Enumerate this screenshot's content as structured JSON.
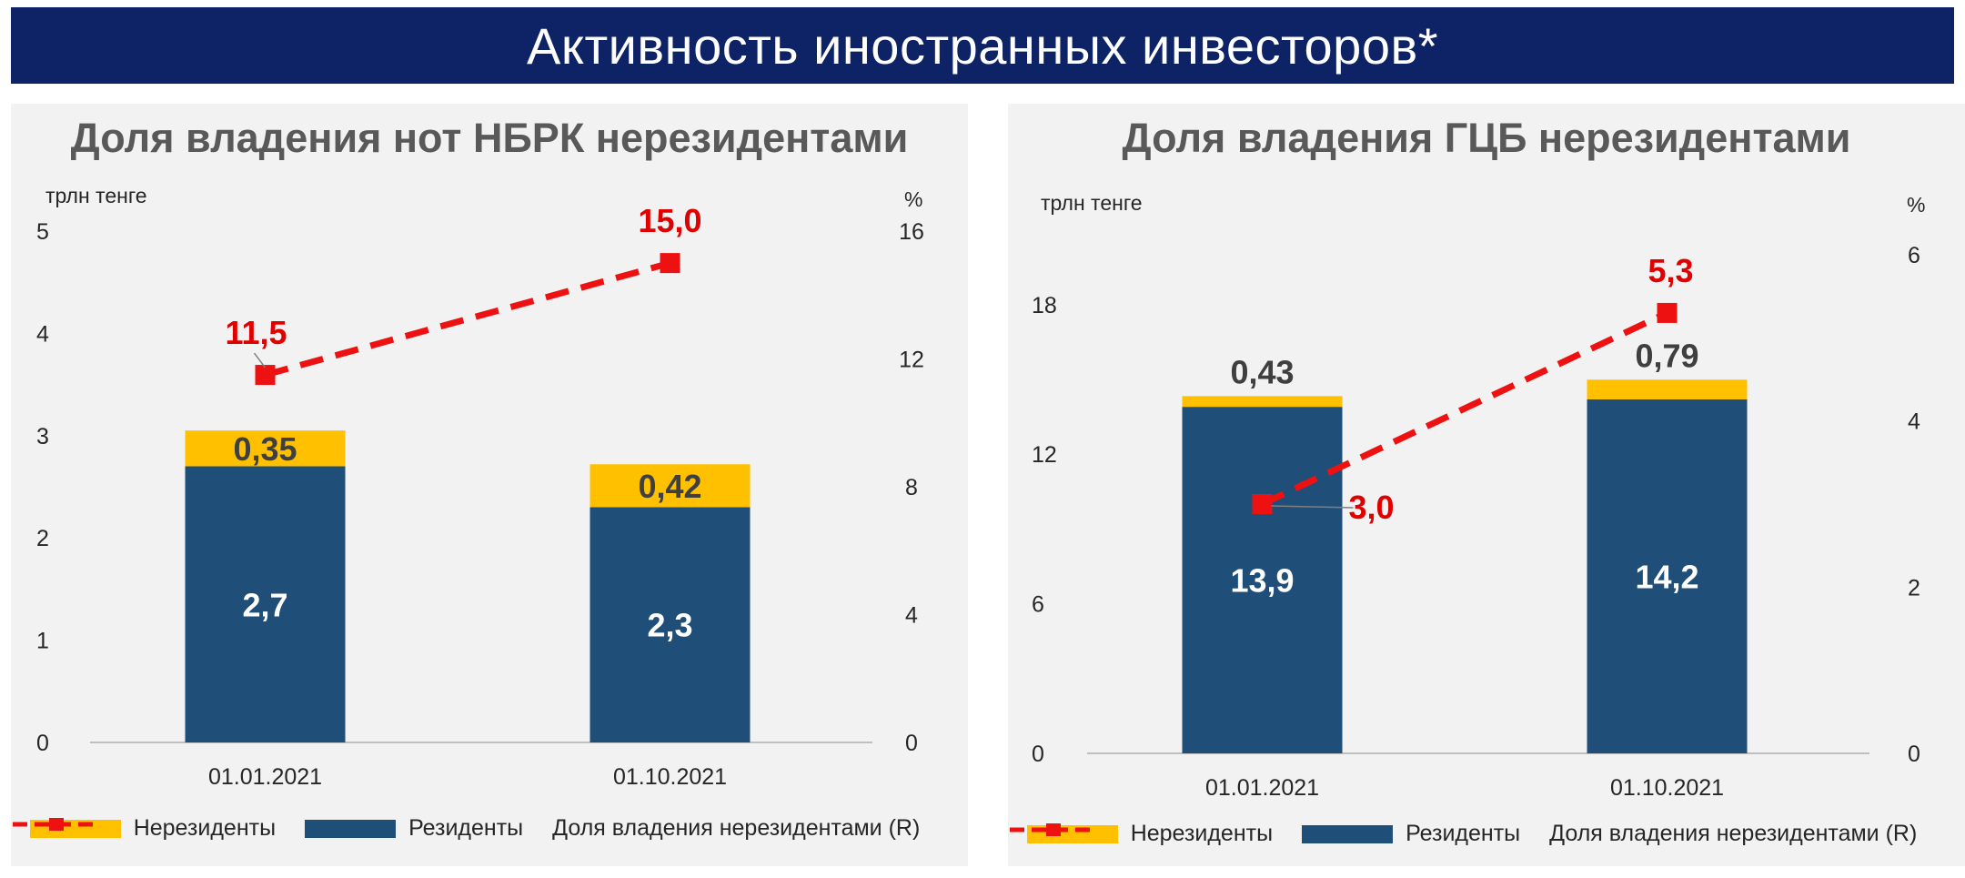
{
  "banner": {
    "title": "Активность иностранных инвесторов*"
  },
  "legend": {
    "nonresidents": "Нерезиденты",
    "residents": "Резиденты",
    "share": "Доля владения нерезидентами (R)"
  },
  "colors": {
    "residents": "#1f4e79",
    "nonresidents": "#ffc000",
    "share_line": "#ee1111",
    "banner": "#0d2366"
  },
  "charts": [
    {
      "title": "Доля владения нот НБРК нерезидентами",
      "left_unit": "трлн тенге",
      "right_unit": "%",
      "left_ticks": [
        "0",
        "1",
        "2",
        "3",
        "4",
        "5"
      ],
      "right_ticks": [
        "0",
        "4",
        "8",
        "12",
        "16"
      ],
      "categories": [
        "01.01.2021",
        "01.10.2021"
      ],
      "residents_labels": [
        "2,7",
        "2,3"
      ],
      "nonresidents_labels": [
        "0,35",
        "0,42"
      ],
      "share_labels": [
        "11,5",
        "15,0"
      ]
    },
    {
      "title": "Доля владения ГЦБ нерезидентами",
      "left_unit": "трлн тенге",
      "right_unit": "%",
      "left_ticks": [
        "0",
        "6",
        "12",
        "18"
      ],
      "right_ticks": [
        "0",
        "2",
        "4",
        "6"
      ],
      "categories": [
        "01.01.2021",
        "01.10.2021"
      ],
      "residents_labels": [
        "13,9",
        "14,2"
      ],
      "nonresidents_labels": [
        "0,43",
        "0,79"
      ],
      "share_labels": [
        "3,0",
        "5,3"
      ]
    }
  ],
  "chart_data": [
    {
      "type": "bar",
      "title": "Доля владения нот НБРК нерезидентами",
      "ylabel": "трлн тенге",
      "y2label": "%",
      "categories": [
        "01.01.2021",
        "01.10.2021"
      ],
      "ylim": [
        0,
        5
      ],
      "y2lim": [
        0,
        16
      ],
      "stacked": true,
      "series": [
        {
          "name": "Резиденты",
          "type": "bar",
          "axis": "left",
          "values": [
            2.7,
            2.3
          ]
        },
        {
          "name": "Нерезиденты",
          "type": "bar",
          "axis": "left",
          "values": [
            0.35,
            0.42
          ]
        },
        {
          "name": "Доля владения нерезидентами (R)",
          "type": "line",
          "axis": "right",
          "values": [
            11.5,
            15.0
          ]
        }
      ],
      "legend_position": "bottom",
      "grid": false
    },
    {
      "type": "bar",
      "title": "Доля владения ГЦБ нерезидентами",
      "ylabel": "трлн тенге",
      "y2label": "%",
      "categories": [
        "01.01.2021",
        "01.10.2021"
      ],
      "ylim": [
        0,
        20
      ],
      "y2lim": [
        0,
        6
      ],
      "stacked": true,
      "series": [
        {
          "name": "Резиденты",
          "type": "bar",
          "axis": "left",
          "values": [
            13.9,
            14.2
          ]
        },
        {
          "name": "Нерезиденты",
          "type": "bar",
          "axis": "left",
          "values": [
            0.43,
            0.79
          ]
        },
        {
          "name": "Доля владения нерезидентами (R)",
          "type": "line",
          "axis": "right",
          "values": [
            3.0,
            5.3
          ]
        }
      ],
      "legend_position": "bottom",
      "grid": false
    }
  ]
}
